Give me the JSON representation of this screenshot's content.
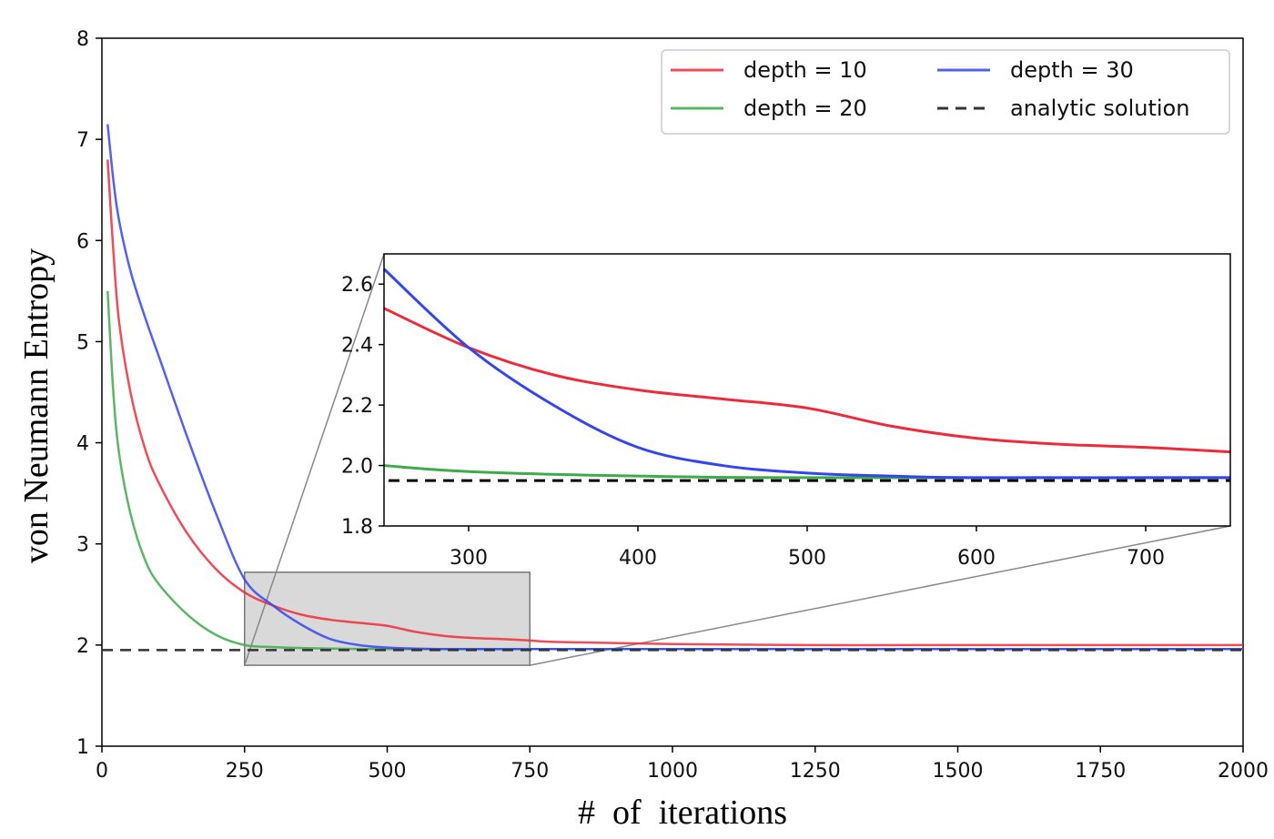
{
  "chart_data": {
    "type": "line",
    "xlabel": "#  of  iterations",
    "ylabel": "von Neumann Entropy",
    "xlim": [
      0,
      2000
    ],
    "ylim": [
      1,
      8
    ],
    "xticks": [
      0,
      250,
      500,
      750,
      1000,
      1250,
      1500,
      1750,
      2000
    ],
    "yticks": [
      1,
      2,
      3,
      4,
      5,
      6,
      7,
      8
    ],
    "grid": false,
    "legend_position": "top-right",
    "series": [
      {
        "name": "depth = 10",
        "color": "#ee2b3b",
        "x": [
          10,
          20,
          30,
          50,
          75,
          100,
          150,
          200,
          250,
          300,
          350,
          400,
          450,
          500,
          550,
          600,
          650,
          700,
          750,
          800,
          1000,
          1250,
          1500,
          1750,
          2000
        ],
        "y": [
          6.8,
          5.9,
          5.2,
          4.5,
          3.95,
          3.6,
          3.1,
          2.75,
          2.52,
          2.39,
          2.3,
          2.25,
          2.22,
          2.19,
          2.13,
          2.09,
          2.07,
          2.06,
          2.045,
          2.03,
          2.01,
          2.0,
          2.0,
          2.0,
          2.0
        ]
      },
      {
        "name": "depth = 20",
        "color": "#3faa4a",
        "x": [
          10,
          20,
          30,
          50,
          75,
          100,
          150,
          200,
          250,
          300,
          400,
          500,
          750,
          1000,
          1500,
          2000
        ],
        "y": [
          5.5,
          4.5,
          3.9,
          3.3,
          2.85,
          2.6,
          2.3,
          2.1,
          2.0,
          1.98,
          1.965,
          1.96,
          1.96,
          1.96,
          1.96,
          1.96
        ]
      },
      {
        "name": "depth = 30",
        "color": "#3346ee",
        "x": [
          10,
          20,
          30,
          50,
          75,
          100,
          150,
          200,
          250,
          300,
          350,
          400,
          450,
          500,
          550,
          600,
          750,
          1000,
          1500,
          2000
        ],
        "y": [
          7.15,
          6.6,
          6.2,
          5.7,
          5.25,
          4.85,
          4.05,
          3.3,
          2.65,
          2.39,
          2.2,
          2.06,
          2.0,
          1.975,
          1.965,
          1.96,
          1.96,
          1.96,
          1.96,
          1.96
        ]
      },
      {
        "name": "analytic solution",
        "color": "#333333",
        "dashed": true,
        "x": [
          0,
          2000
        ],
        "y": [
          1.95,
          1.95
        ]
      }
    ],
    "inset": {
      "xlim": [
        250,
        750
      ],
      "ylim": [
        1.8,
        2.7
      ],
      "xticks": [
        300,
        400,
        500,
        600,
        700
      ],
      "yticks": [
        1.8,
        2.0,
        2.2,
        2.4,
        2.6
      ],
      "ytick_labels": [
        "1.8",
        "2.0",
        "2.2",
        "2.4",
        "2.6"
      ],
      "zoom_box": {
        "x": [
          250,
          750
        ],
        "y": [
          1.8,
          2.72
        ]
      }
    }
  }
}
